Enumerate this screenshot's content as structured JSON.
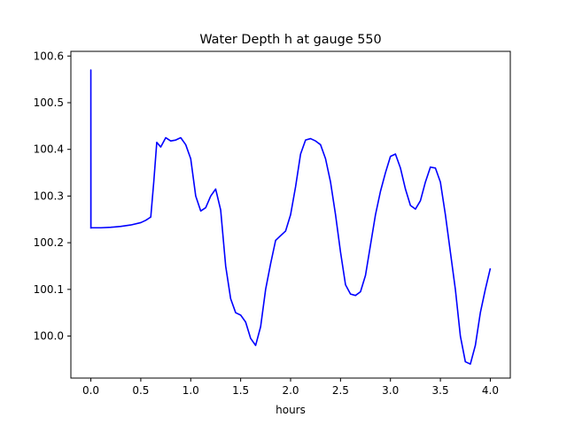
{
  "chart_data": {
    "type": "line",
    "title": "Water Depth h at gauge 550",
    "xlabel": "hours",
    "ylabel": "",
    "xlim": [
      -0.2,
      4.2
    ],
    "ylim": [
      99.91,
      100.61
    ],
    "xticks": [
      0.0,
      0.5,
      1.0,
      1.5,
      2.0,
      2.5,
      3.0,
      3.5,
      4.0
    ],
    "xtick_labels": [
      "0.0",
      "0.5",
      "1.0",
      "1.5",
      "2.0",
      "2.5",
      "3.0",
      "3.5",
      "4.0"
    ],
    "yticks": [
      100.0,
      100.1,
      100.2,
      100.3,
      100.4,
      100.5,
      100.6
    ],
    "ytick_labels": [
      "100.0",
      "100.1",
      "100.2",
      "100.3",
      "100.4",
      "100.5",
      "100.6"
    ],
    "grid": false,
    "series": [
      {
        "color": "#0000ff",
        "x": [
          0.0,
          0.0,
          0.001,
          0.1,
          0.2,
          0.3,
          0.4,
          0.5,
          0.55,
          0.6,
          0.63,
          0.66,
          0.7,
          0.75,
          0.8,
          0.85,
          0.9,
          0.95,
          1.0,
          1.05,
          1.1,
          1.15,
          1.2,
          1.25,
          1.3,
          1.35,
          1.4,
          1.45,
          1.5,
          1.55,
          1.6,
          1.65,
          1.7,
          1.75,
          1.8,
          1.85,
          1.9,
          1.95,
          2.0,
          2.05,
          2.1,
          2.15,
          2.2,
          2.25,
          2.3,
          2.35,
          2.4,
          2.45,
          2.5,
          2.55,
          2.6,
          2.65,
          2.7,
          2.75,
          2.8,
          2.85,
          2.9,
          2.95,
          3.0,
          3.05,
          3.1,
          3.15,
          3.2,
          3.25,
          3.3,
          3.35,
          3.4,
          3.45,
          3.5,
          3.55,
          3.6,
          3.65,
          3.7,
          3.75,
          3.8,
          3.85,
          3.9,
          3.95,
          4.0
        ],
        "y": [
          100.23,
          100.57,
          100.232,
          100.232,
          100.233,
          100.235,
          100.238,
          100.243,
          100.248,
          100.255,
          100.33,
          100.415,
          100.405,
          100.425,
          100.418,
          100.42,
          100.425,
          100.41,
          100.38,
          100.3,
          100.268,
          100.275,
          100.3,
          100.315,
          100.27,
          100.15,
          100.08,
          100.05,
          100.045,
          100.03,
          99.995,
          99.98,
          100.02,
          100.1,
          100.155,
          100.205,
          100.215,
          100.225,
          100.26,
          100.32,
          100.39,
          100.42,
          100.423,
          100.418,
          100.41,
          100.38,
          100.33,
          100.26,
          100.18,
          100.11,
          100.09,
          100.087,
          100.095,
          100.13,
          100.195,
          100.26,
          100.31,
          100.35,
          100.385,
          100.39,
          100.36,
          100.315,
          100.28,
          100.272,
          100.29,
          100.33,
          100.362,
          100.36,
          100.33,
          100.26,
          100.18,
          100.1,
          100.0,
          99.945,
          99.94,
          99.98,
          100.05,
          100.1,
          100.145
        ]
      }
    ]
  }
}
